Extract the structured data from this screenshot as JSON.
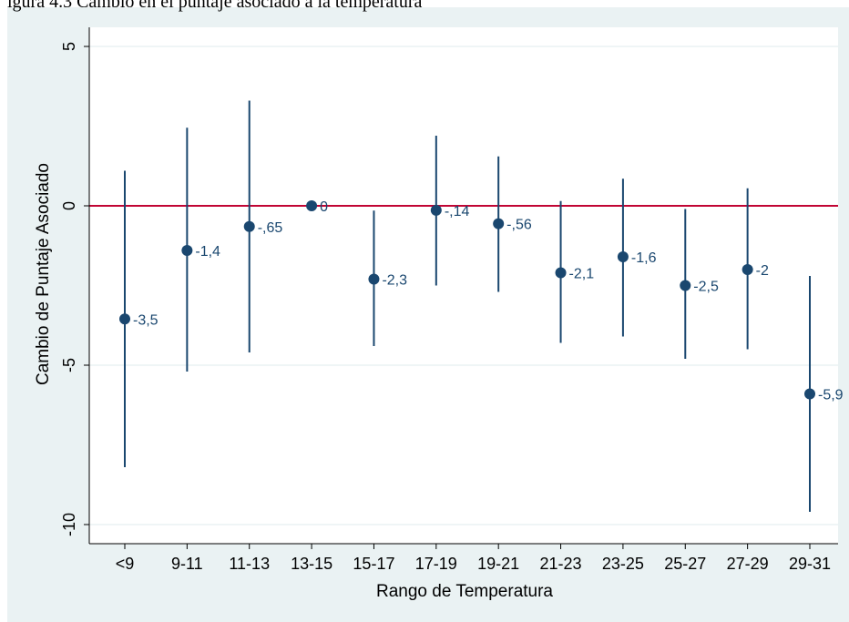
{
  "caption": "igura 4.3 Cambio en el puntaje asociado a la temperatura",
  "chart_data": {
    "type": "scatter",
    "subtype": "coefficient-plot-with-confidence-intervals",
    "title": "",
    "xlabel": "Rango de Temperatura",
    "ylabel": "Cambio de Puntaje Asociado",
    "categories": [
      "<9",
      "9-11",
      "11-13",
      "13-15",
      "15-17",
      "17-19",
      "19-21",
      "21-23",
      "23-25",
      "25-27",
      "27-29",
      "29-31"
    ],
    "values": [
      -3.55,
      -1.4,
      -0.65,
      0,
      -2.3,
      -0.14,
      -0.56,
      -2.1,
      -1.6,
      -2.5,
      -2,
      -5.9
    ],
    "point_labels": [
      "-3,5",
      "-1,4",
      "-,65",
      "0",
      "-2,3",
      "-,14",
      "-,56",
      "-2,1",
      "-1,6",
      "-2,5",
      "-2",
      "-5,9"
    ],
    "ci_lower": [
      -8.2,
      -5.2,
      -4.6,
      0,
      -4.4,
      -2.5,
      -2.7,
      -4.3,
      -4.1,
      -4.8,
      -4.5,
      -9.6
    ],
    "ci_upper": [
      1.1,
      2.45,
      3.3,
      0,
      -0.15,
      2.2,
      1.55,
      0.15,
      0.85,
      -0.1,
      0.55,
      -2.2
    ],
    "reference_line": {
      "y": 0,
      "color": "#c10534"
    },
    "ylim": [
      -10.6,
      5.6
    ],
    "yticks": [
      5,
      0,
      -5,
      -10
    ],
    "ytick_labels": [
      "5",
      "0",
      "-5",
      "-10"
    ],
    "grid": true,
    "colors": {
      "series": "#1a476f",
      "background": "#eaf2f3",
      "plot_area": "#ffffff",
      "reference": "#c10534",
      "grid": "#eaf2f3"
    }
  }
}
